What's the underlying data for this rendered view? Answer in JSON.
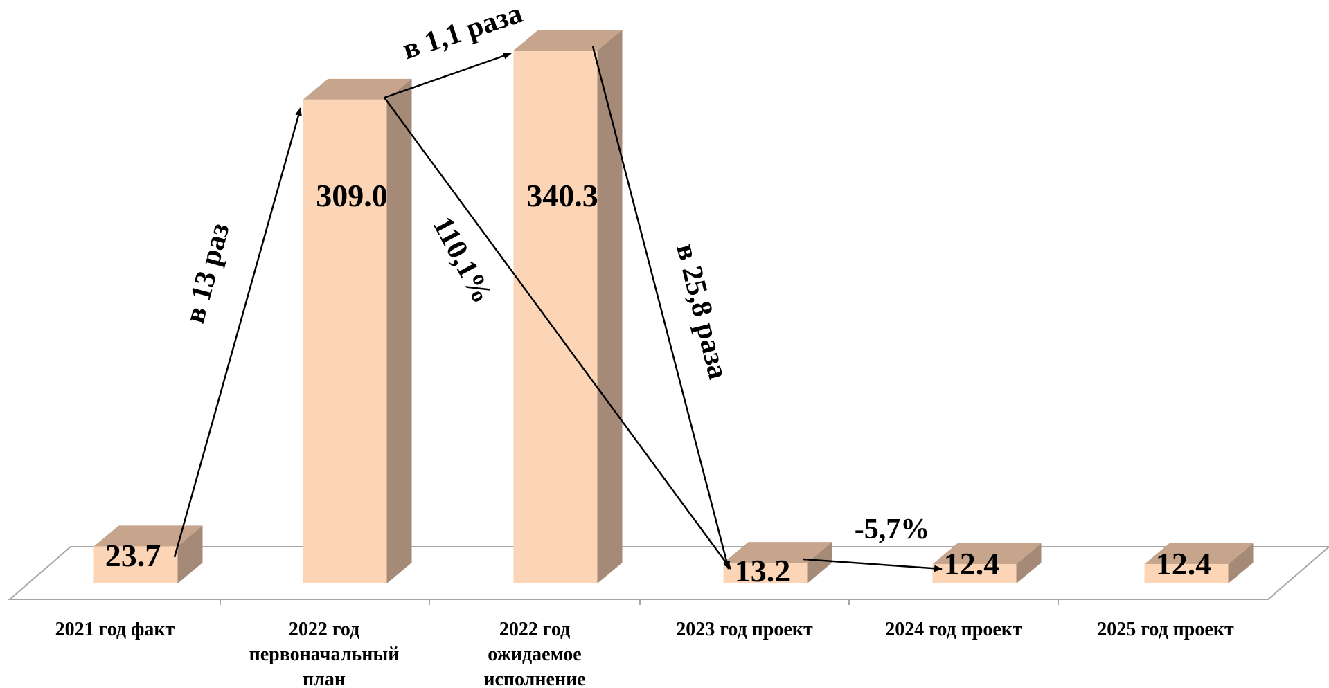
{
  "chart_data": {
    "type": "bar",
    "categories": [
      [
        "2021 год факт"
      ],
      [
        "2022 год",
        "первоначальный",
        "план"
      ],
      [
        "2022 год",
        "ожидаемое",
        "исполнение"
      ],
      [
        "2023 год проект"
      ],
      [
        "2024 год проект"
      ],
      [
        "2025 год проект"
      ]
    ],
    "values": [
      23.7,
      309.0,
      340.3,
      13.2,
      12.4,
      12.4
    ],
    "value_labels": [
      "23.7",
      "309.0",
      "340.3",
      "13.2",
      "12.4",
      "12.4"
    ],
    "ylim": [
      0,
      340.3
    ],
    "grid": false,
    "legend": "none",
    "annotations": [
      {
        "text": "в 13 раз",
        "from": 0,
        "to": 1
      },
      {
        "text": "в 1,1 раза",
        "from": 1,
        "to": 2
      },
      {
        "text": "110,1%",
        "from": 1,
        "to": 3
      },
      {
        "text": "в 25,8 раза",
        "from": 2,
        "to": 3
      },
      {
        "text": "-5,7%",
        "from": 3,
        "to": 4
      }
    ],
    "colors": {
      "bar_front": "#FBD5B5",
      "bar_top": "#C7A58D",
      "bar_side": "#A58A78",
      "floor_line": "#A6A6A6",
      "arrow": "#000000"
    }
  }
}
